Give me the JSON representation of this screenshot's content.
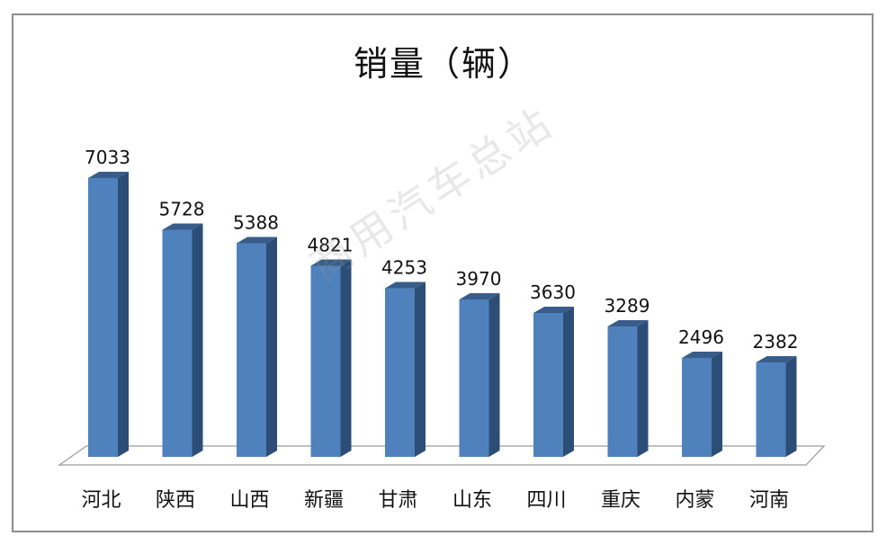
{
  "chart_data": {
    "type": "bar",
    "title": "销量（辆）",
    "categories": [
      "河北",
      "陕西",
      "山西",
      "新疆",
      "甘肃",
      "山东",
      "四川",
      "重庆",
      "内蒙",
      "河南"
    ],
    "values": [
      7033,
      5728,
      5388,
      4821,
      4253,
      3970,
      3630,
      3289,
      2496,
      2382
    ],
    "xlabel": "",
    "ylabel": "",
    "ylim": [
      0,
      8000
    ],
    "grid": false,
    "legend": "none",
    "style": "3d-column",
    "colors": {
      "bar_front": "#4f81bd",
      "bar_side": "#2c4d75",
      "bar_top": "#385d8a",
      "floor": "#ffffff",
      "floor_edge": "#9a9a9a"
    }
  },
  "watermark": "商用汽车总站"
}
